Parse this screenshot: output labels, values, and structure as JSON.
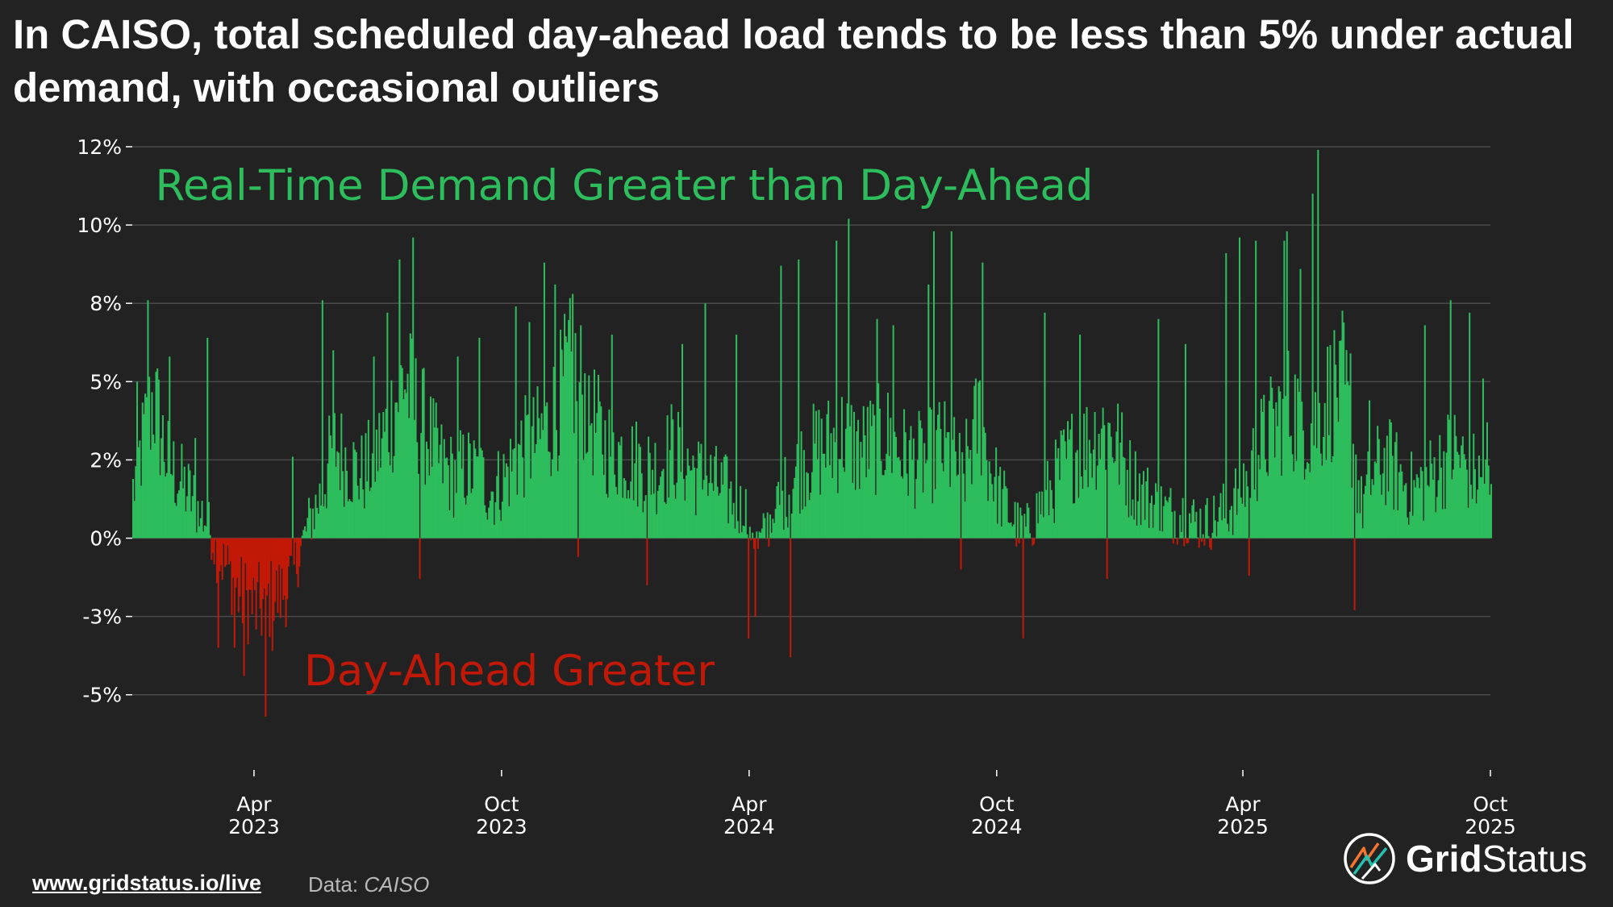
{
  "title": "In CAISO, total scheduled day-ahead load tends to be less than 5% under actual demand, with occasional outliers",
  "footer": {
    "link": "www.gridstatus.io/live",
    "source_label": "Data:",
    "source_name": "CAISO"
  },
  "brand": {
    "name_bold": "Grid",
    "name_regular": "Status",
    "logo_icon": "grid-status-logo-icon"
  },
  "colors": {
    "background": "#222222",
    "positive": "#2dbd5c",
    "negative": "#c21807",
    "grid": "#4a4a4a",
    "text": "#ffffff"
  },
  "chart_data": {
    "type": "bar",
    "title": "In CAISO, total scheduled day-ahead load tends to be less than 5% under actual demand, with occasional outliers",
    "xlabel": "",
    "ylabel": "",
    "ylim": [
      -6.5,
      12.5
    ],
    "yticks": [
      {
        "value": 12.5,
        "label": "12%"
      },
      {
        "value": 10,
        "label": "10%"
      },
      {
        "value": 7.5,
        "label": "8%"
      },
      {
        "value": 5,
        "label": "5%"
      },
      {
        "value": 2.5,
        "label": "2%"
      },
      {
        "value": 0,
        "label": "0%"
      },
      {
        "value": -2.5,
        "label": "-3%"
      },
      {
        "value": -5,
        "label": "-5%"
      }
    ],
    "xticks": [
      {
        "day": 90,
        "month": "Apr",
        "year": "2023"
      },
      {
        "day": 273,
        "month": "Oct",
        "year": "2023"
      },
      {
        "day": 456,
        "month": "Apr",
        "year": "2024"
      },
      {
        "day": 639,
        "month": "Oct",
        "year": "2024"
      },
      {
        "day": 821,
        "month": "Apr",
        "year": "2025"
      },
      {
        "day": 1004,
        "month": "Oct",
        "year": "2025"
      }
    ],
    "x_range_days": [
      0,
      1004
    ],
    "x_start_date": "2023-01-01",
    "grid": true,
    "annotations": [
      {
        "text": "Real-Time Demand Greater than Day-Ahead",
        "series": "positive",
        "x_day": 17,
        "y": 10.8
      },
      {
        "text": "Day-Ahead Greater",
        "series": "negative",
        "x_day": 127,
        "y": -4.7
      }
    ],
    "series_description": "Daily percent by which real-time demand exceeded total scheduled day-ahead load (negative = day-ahead greater)",
    "anchors": [
      [
        0,
        1.5
      ],
      [
        8,
        3.2
      ],
      [
        15,
        4.5
      ],
      [
        25,
        2.5
      ],
      [
        35,
        1.8
      ],
      [
        45,
        1.2
      ],
      [
        55,
        0.5
      ],
      [
        62,
        -0.5
      ],
      [
        70,
        -1.0
      ],
      [
        78,
        -1.8
      ],
      [
        85,
        -2.0
      ],
      [
        92,
        -2.3
      ],
      [
        100,
        -2.0
      ],
      [
        110,
        -1.8
      ],
      [
        118,
        -1.2
      ],
      [
        124,
        -0.3
      ],
      [
        130,
        0.5
      ],
      [
        140,
        1.5
      ],
      [
        148,
        3.0
      ],
      [
        158,
        2.5
      ],
      [
        168,
        2.0
      ],
      [
        178,
        2.5
      ],
      [
        188,
        3.5
      ],
      [
        195,
        4.5
      ],
      [
        200,
        5.2
      ],
      [
        208,
        4.2
      ],
      [
        216,
        3.5
      ],
      [
        226,
        2.5
      ],
      [
        236,
        2.0
      ],
      [
        246,
        2.2
      ],
      [
        256,
        2.0
      ],
      [
        266,
        1.5
      ],
      [
        276,
        2.0
      ],
      [
        286,
        2.8
      ],
      [
        296,
        3.0
      ],
      [
        306,
        3.5
      ],
      [
        316,
        4.5
      ],
      [
        322,
        5.3
      ],
      [
        330,
        5.0
      ],
      [
        338,
        4.0
      ],
      [
        348,
        3.0
      ],
      [
        358,
        2.8
      ],
      [
        368,
        2.5
      ],
      [
        378,
        2.3
      ],
      [
        388,
        2.2
      ],
      [
        398,
        2.8
      ],
      [
        408,
        2.5
      ],
      [
        418,
        2.0
      ],
      [
        428,
        1.8
      ],
      [
        438,
        1.5
      ],
      [
        448,
        1.0
      ],
      [
        456,
        0.6
      ],
      [
        462,
        -0.3
      ],
      [
        468,
        0.3
      ],
      [
        476,
        1.0
      ],
      [
        486,
        1.8
      ],
      [
        496,
        2.5
      ],
      [
        506,
        2.8
      ],
      [
        516,
        3.0
      ],
      [
        526,
        3.3
      ],
      [
        536,
        2.8
      ],
      [
        546,
        3.0
      ],
      [
        556,
        3.3
      ],
      [
        566,
        2.8
      ],
      [
        576,
        2.5
      ],
      [
        586,
        2.5
      ],
      [
        596,
        3.0
      ],
      [
        606,
        2.5
      ],
      [
        614,
        2.0
      ],
      [
        620,
        3.0
      ],
      [
        626,
        4.0
      ],
      [
        632,
        2.5
      ],
      [
        640,
        1.5
      ],
      [
        648,
        0.8
      ],
      [
        655,
        0.3
      ],
      [
        662,
        0.3
      ],
      [
        670,
        1.0
      ],
      [
        678,
        1.5
      ],
      [
        686,
        2.2
      ],
      [
        696,
        2.8
      ],
      [
        706,
        3.0
      ],
      [
        716,
        3.5
      ],
      [
        726,
        3.2
      ],
      [
        736,
        2.0
      ],
      [
        746,
        1.5
      ],
      [
        756,
        1.0
      ],
      [
        766,
        0.8
      ],
      [
        776,
        0.8
      ],
      [
        786,
        0.5
      ],
      [
        796,
        0.5
      ],
      [
        806,
        0.8
      ],
      [
        814,
        1.2
      ],
      [
        822,
        1.8
      ],
      [
        832,
        2.8
      ],
      [
        842,
        3.5
      ],
      [
        852,
        4.2
      ],
      [
        862,
        4.0
      ],
      [
        872,
        3.5
      ],
      [
        880,
        4.2
      ],
      [
        888,
        4.8
      ],
      [
        894,
        5.0
      ],
      [
        902,
        3.0
      ],
      [
        908,
        1.0
      ],
      [
        916,
        2.0
      ],
      [
        926,
        2.5
      ],
      [
        936,
        2.0
      ],
      [
        946,
        1.5
      ],
      [
        956,
        1.8
      ],
      [
        966,
        2.3
      ],
      [
        976,
        2.8
      ],
      [
        986,
        2.3
      ],
      [
        996,
        1.8
      ],
      [
        1004,
        1.5
      ]
    ],
    "spikes": [
      [
        3,
        5.0
      ],
      [
        11,
        7.6
      ],
      [
        27,
        5.8
      ],
      [
        46,
        3.2
      ],
      [
        55,
        6.4
      ],
      [
        63,
        -3.5
      ],
      [
        75,
        -3.5
      ],
      [
        82,
        -4.4
      ],
      [
        98,
        -5.7
      ],
      [
        103,
        -3.6
      ],
      [
        118,
        2.6
      ],
      [
        140,
        7.6
      ],
      [
        148,
        6.0
      ],
      [
        178,
        5.8
      ],
      [
        188,
        7.2
      ],
      [
        197,
        8.9
      ],
      [
        207,
        9.6
      ],
      [
        212,
        -1.3
      ],
      [
        240,
        5.8
      ],
      [
        256,
        6.4
      ],
      [
        283,
        7.4
      ],
      [
        293,
        6.9
      ],
      [
        304,
        8.8
      ],
      [
        312,
        8.1
      ],
      [
        325,
        7.8
      ],
      [
        329,
        -0.6
      ],
      [
        337,
        5.2
      ],
      [
        354,
        6.5
      ],
      [
        380,
        -1.5
      ],
      [
        406,
        6.2
      ],
      [
        423,
        7.5
      ],
      [
        446,
        6.5
      ],
      [
        455,
        -3.2
      ],
      [
        460,
        -2.5
      ],
      [
        479,
        8.7
      ],
      [
        486,
        -3.8
      ],
      [
        492,
        8.9
      ],
      [
        520,
        9.5
      ],
      [
        529,
        10.2
      ],
      [
        550,
        7.0
      ],
      [
        562,
        6.8
      ],
      [
        588,
        8.1
      ],
      [
        592,
        9.8
      ],
      [
        605,
        9.8
      ],
      [
        612,
        -1.0
      ],
      [
        628,
        8.8
      ],
      [
        658,
        -3.2
      ],
      [
        674,
        7.2
      ],
      [
        700,
        6.5
      ],
      [
        720,
        -1.3
      ],
      [
        758,
        7.0
      ],
      [
        778,
        6.2
      ],
      [
        808,
        9.1
      ],
      [
        818,
        9.6
      ],
      [
        825,
        -1.2
      ],
      [
        830,
        9.5
      ],
      [
        851,
        9.5
      ],
      [
        853,
        9.8
      ],
      [
        863,
        8.6
      ],
      [
        872,
        11.0
      ],
      [
        876,
        12.4
      ],
      [
        892,
        6.3
      ],
      [
        900,
        5.9
      ],
      [
        903,
        -2.3
      ],
      [
        914,
        4.4
      ],
      [
        955,
        6.8
      ],
      [
        974,
        7.6
      ],
      [
        988,
        7.2
      ],
      [
        998,
        5.1
      ],
      [
        1001,
        3.7
      ]
    ]
  }
}
